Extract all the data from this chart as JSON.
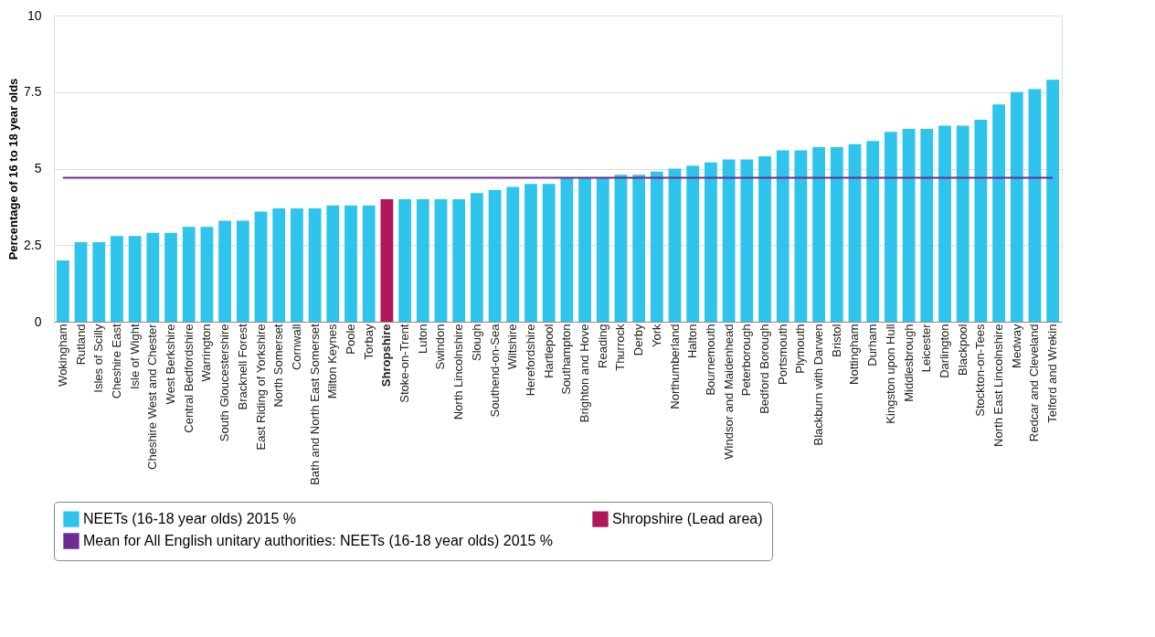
{
  "chart_data": {
    "type": "bar",
    "ylabel": "Percentage of 16 to 18 year olds",
    "categories": [
      "Wokingham",
      "Rutland",
      "Isles of Scilly",
      "Cheshire East",
      "Isle of Wight",
      "Cheshire West and Chester",
      "West Berkshire",
      "Central Bedfordshire",
      "Warrington",
      "South Gloucestershire",
      "Bracknell Forest",
      "East Riding of Yorkshire",
      "North Somerset",
      "Cornwall",
      "Bath and North East Somerset",
      "Milton Keynes",
      "Poole",
      "Torbay",
      "Shropshire",
      "Stoke-on-Trent",
      "Luton",
      "Swindon",
      "North Lincolnshire",
      "Slough",
      "Southend-on-Sea",
      "Wiltshire",
      "Herefordshire",
      "Hartlepool",
      "Southampton",
      "Brighton and Hove",
      "Reading",
      "Thurrock",
      "Derby",
      "York",
      "Northumberland",
      "Halton",
      "Bournemouth",
      "Windsor and Maidenhead",
      "Peterborough",
      "Bedford Borough",
      "Portsmouth",
      "Plymouth",
      "Blackburn with Darwen",
      "Bristol",
      "Nottingham",
      "Durham",
      "Kingston upon Hull",
      "Middlesbrough",
      "Leicester",
      "Darlington",
      "Blackpool",
      "Stockton-on-Tees",
      "North East Lincolnshire",
      "Medway",
      "Redcar and Cleveland",
      "Telford and Wrekin"
    ],
    "series": [
      {
        "name": "NEETs (16-18 year olds) 2015 %",
        "color": "#2ec4ec",
        "values": [
          2.0,
          2.6,
          2.6,
          2.8,
          2.8,
          2.9,
          2.9,
          3.1,
          3.1,
          3.3,
          3.3,
          3.6,
          3.7,
          3.7,
          3.7,
          3.8,
          3.8,
          3.8,
          null,
          4.0,
          4.0,
          4.0,
          4.0,
          4.2,
          4.3,
          4.4,
          4.5,
          4.5,
          4.7,
          4.7,
          4.7,
          4.8,
          4.8,
          4.9,
          5.0,
          5.1,
          5.2,
          5.3,
          5.3,
          5.4,
          5.6,
          5.6,
          5.7,
          5.7,
          5.8,
          5.9,
          6.2,
          6.3,
          6.3,
          6.4,
          6.4,
          6.6,
          7.1,
          7.5,
          7.6,
          7.9
        ]
      },
      {
        "name": "Shropshire (Lead area)",
        "color": "#b0165a",
        "values": [
          null,
          null,
          null,
          null,
          null,
          null,
          null,
          null,
          null,
          null,
          null,
          null,
          null,
          null,
          null,
          null,
          null,
          null,
          4.0,
          null,
          null,
          null,
          null,
          null,
          null,
          null,
          null,
          null,
          null,
          null,
          null,
          null,
          null,
          null,
          null,
          null,
          null,
          null,
          null,
          null,
          null,
          null,
          null,
          null,
          null,
          null,
          null,
          null,
          null,
          null,
          null,
          null,
          null,
          null,
          null,
          null
        ]
      },
      {
        "name": "Mean for All English unitary authorities: NEETs (16-18 year olds) 2015 %",
        "color": "#6b2c91",
        "type": "line",
        "values": [
          4.7,
          4.7,
          4.7,
          4.7,
          4.7,
          4.7,
          4.7,
          4.7,
          4.7,
          4.7,
          4.7,
          4.7,
          4.7,
          4.7,
          4.7,
          4.7,
          4.7,
          4.7,
          4.7,
          4.7,
          4.7,
          4.7,
          4.7,
          4.7,
          4.7,
          4.7,
          4.7,
          4.7,
          4.7,
          4.7,
          4.7,
          4.7,
          4.7,
          4.7,
          4.7,
          4.7,
          4.7,
          4.7,
          4.7,
          4.7,
          4.7,
          4.7,
          4.7,
          4.7,
          4.7,
          4.7,
          4.7,
          4.7,
          4.7,
          4.7,
          4.7,
          4.7,
          4.7,
          4.7,
          4.7,
          4.7
        ]
      }
    ],
    "ylim": [
      0,
      10
    ],
    "yticks": [
      0,
      {
        "value": 2.5,
        "label": "2.5"
      },
      5,
      {
        "value": 7.5,
        "label": "7.5"
      },
      10
    ],
    "grid": "y",
    "legend": "bottom",
    "marker": "none"
  }
}
